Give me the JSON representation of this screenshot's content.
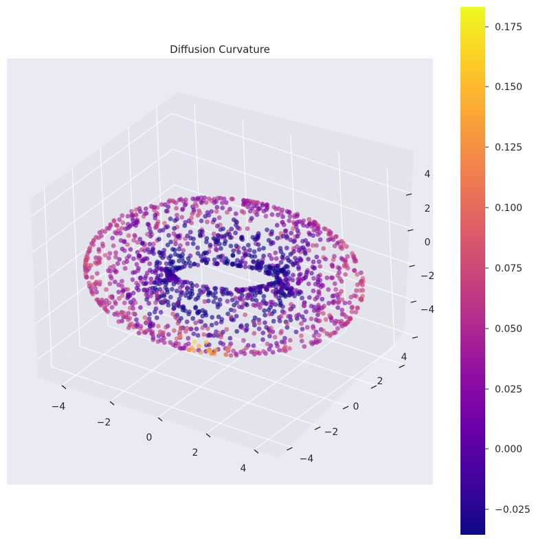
{
  "chart_data": {
    "type": "scatter",
    "subtype": "3d-scatter",
    "title": "Diffusion Curvature",
    "colormap": "plasma",
    "x_ticks": [
      "−4",
      "−2",
      "0",
      "2",
      "4"
    ],
    "y_ticks": [
      "−4",
      "−2",
      "0",
      "2",
      "4"
    ],
    "z_ticks": [
      "−4",
      "−2",
      "0",
      "2",
      "4"
    ],
    "xlim": [
      -5,
      5
    ],
    "ylim": [
      -5,
      5
    ],
    "zlim": [
      -5,
      5
    ],
    "colorbar": {
      "range": [
        -0.035,
        0.182
      ],
      "ticks": [
        "−0.025",
        "0.000",
        "0.025",
        "0.050",
        "0.075",
        "0.100",
        "0.125",
        "0.150",
        "0.175"
      ],
      "tick_values": [
        -0.025,
        0.0,
        0.025,
        0.05,
        0.075,
        0.1,
        0.125,
        0.15,
        0.175
      ]
    },
    "surface": {
      "shape": "torus",
      "major_radius": 3.5,
      "minor_radius": 1.5,
      "point_count": 1600
    },
    "grid": true,
    "background_color": "#EAEAF2"
  }
}
